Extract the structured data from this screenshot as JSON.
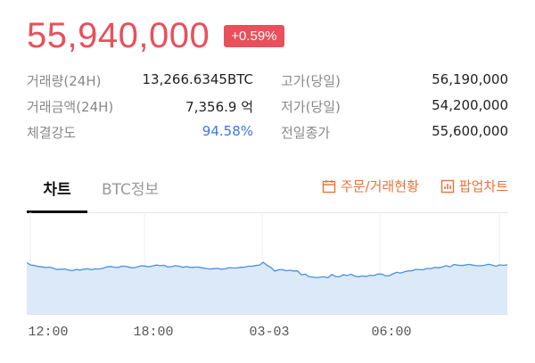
{
  "price": "55,940,000",
  "change": "+0.59%",
  "stats": [
    {
      "label": "거래량(24H)",
      "value": "13,266.6345BTC",
      "label2": "고가(당일)",
      "value2": "56,190,000"
    },
    {
      "label": "거래금액(24H)",
      "value": "7,356.9 억",
      "label2": "저가(당일)",
      "value2": "54,200,000"
    },
    {
      "label": "체결강도",
      "value": "94.58%",
      "label2": "전일종가",
      "value2": "55,600,000"
    }
  ],
  "tabs": {
    "chart": "차트",
    "info": "BTC정보"
  },
  "links": {
    "orders": "주문/거래현황",
    "popup": "팝업차트"
  },
  "chart_data": {
    "type": "area",
    "x_ticks": [
      "12:00",
      "18:00",
      "03-03",
      "06:00"
    ],
    "values": [
      60.5,
      57.8,
      57.2,
      56.1,
      55.6,
      54.7,
      55.3,
      53.9,
      52.4,
      52.8,
      53.0,
      51.7,
      51.2,
      52.5,
      51.8,
      52.8,
      53.3,
      52.2,
      53.3,
      53.1,
      53.9,
      55.6,
      56.0,
      55.2,
      55.0,
      56.4,
      56.2,
      55.0,
      54.5,
      55.5,
      56.8,
      56.5,
      55.7,
      56.7,
      57.7,
      56.9,
      57.5,
      55.5,
      55.9,
      57.0,
      56.3,
      55.1,
      55.9,
      54.9,
      55.2,
      55.4,
      54.4,
      53.7,
      53.0,
      53.5,
      53.8,
      52.8,
      53.2,
      54.6,
      54.3,
      54.2,
      55.1,
      55.2,
      56.3,
      56.3,
      57.2,
      57.6,
      60.9,
      57.5,
      55.0,
      50.5,
      52.1,
      52.3,
      51.0,
      51.6,
      50.7,
      50.8,
      46.2,
      47.0,
      43.9,
      43.6,
      42.7,
      43.6,
      43.8,
      42.7,
      46.6,
      44.1,
      44.0,
      46.3,
      45.3,
      46.9,
      44.6,
      43.9,
      44.9,
      44.3,
      45.7,
      45.3,
      47.0,
      47.0,
      45.2,
      45.1,
      47.4,
      49.2,
      48.2,
      49.8,
      50.8,
      50.9,
      52.6,
      52.2,
      52.2,
      53.8,
      53.4,
      55.1,
      54.4,
      55.5,
      57.1,
      55.6,
      58.4,
      57.6,
      57.2,
      57.7,
      58.5,
      57.6,
      56.9,
      57.0,
      57.4,
      58.6,
      57.8,
      56.3,
      57.9,
      57.4,
      58.0
    ],
    "line_color": "#4a90e2",
    "fill_color": "#dbe9f8"
  }
}
